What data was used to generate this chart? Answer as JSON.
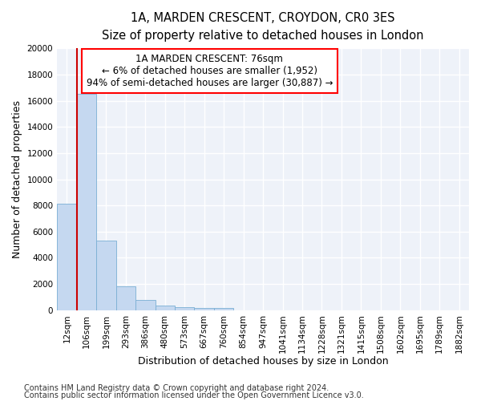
{
  "title_line1": "1A, MARDEN CRESCENT, CROYDON, CR0 3ES",
  "title_line2": "Size of property relative to detached houses in London",
  "xlabel": "Distribution of detached houses by size in London",
  "ylabel": "Number of detached properties",
  "bar_color": "#c5d8f0",
  "bar_edge_color": "#7aafd4",
  "marker_color": "#cc0000",
  "categories": [
    "12sqm",
    "106sqm",
    "199sqm",
    "293sqm",
    "386sqm",
    "480sqm",
    "573sqm",
    "667sqm",
    "760sqm",
    "854sqm",
    "947sqm",
    "1041sqm",
    "1134sqm",
    "1228sqm",
    "1321sqm",
    "1415sqm",
    "1508sqm",
    "1602sqm",
    "1695sqm",
    "1789sqm",
    "1882sqm"
  ],
  "values": [
    8150,
    16550,
    5300,
    1850,
    750,
    320,
    215,
    195,
    155,
    0,
    0,
    0,
    0,
    0,
    0,
    0,
    0,
    0,
    0,
    0,
    0
  ],
  "ylim": [
    0,
    20000
  ],
  "yticks": [
    0,
    2000,
    4000,
    6000,
    8000,
    10000,
    12000,
    14000,
    16000,
    18000,
    20000
  ],
  "property_sqm": 76,
  "annotation_title": "1A MARDEN CRESCENT: 76sqm",
  "annotation_line2": "← 6% of detached houses are smaller (1,952)",
  "annotation_line3": "94% of semi-detached houses are larger (30,887) →",
  "footer_line1": "Contains HM Land Registry data © Crown copyright and database right 2024.",
  "footer_line2": "Contains public sector information licensed under the Open Government Licence v3.0.",
  "background_color": "#eef2f9",
  "grid_color": "#ffffff",
  "title_fontsize": 10.5,
  "subtitle_fontsize": 9.5,
  "axis_label_fontsize": 9,
  "tick_fontsize": 7.5,
  "annotation_fontsize": 8.5,
  "footer_fontsize": 7
}
